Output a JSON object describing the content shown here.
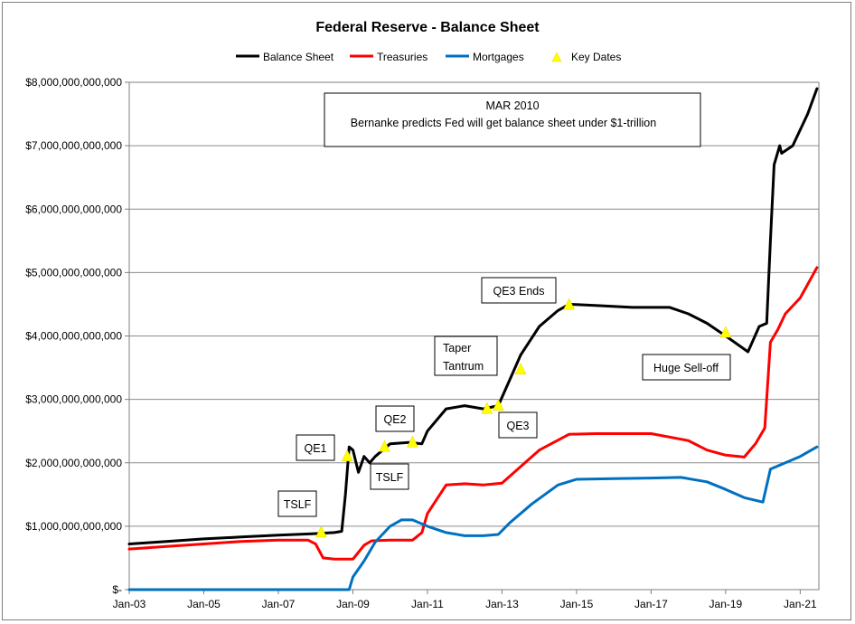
{
  "chart_data": {
    "type": "line",
    "title": "Federal Reserve - Balance Sheet",
    "xlabel": "",
    "ylabel": "",
    "x_tick_labels": [
      "Jan-03",
      "Jan-05",
      "Jan-07",
      "Jan-09",
      "Jan-11",
      "Jan-13",
      "Jan-15",
      "Jan-17",
      "Jan-19",
      "Jan-21"
    ],
    "y_tick_labels": [
      "$-",
      "$1,000,000,000,000",
      "$2,000,000,000,000",
      "$3,000,000,000,000",
      "$4,000,000,000,000",
      "$5,000,000,000,000",
      "$6,000,000,000,000",
      "$7,000,000,000,000",
      "$8,000,000,000,000"
    ],
    "xlim": [
      2003.0,
      2021.5
    ],
    "ylim": [
      0,
      8000000000000
    ],
    "grid": "horizontal",
    "legend_position": "top",
    "legend": [
      "Balance Sheet",
      "Treasuries",
      "Mortgages",
      "Key Dates"
    ],
    "series": [
      {
        "name": "Balance Sheet",
        "color": "#000000",
        "points": [
          [
            2003.0,
            720000000000
          ],
          [
            2004.0,
            760000000000
          ],
          [
            2005.0,
            800000000000
          ],
          [
            2006.0,
            830000000000
          ],
          [
            2007.0,
            860000000000
          ],
          [
            2007.9,
            880000000000
          ],
          [
            2008.5,
            900000000000
          ],
          [
            2008.7,
            920000000000
          ],
          [
            2008.8,
            1500000000000
          ],
          [
            2008.9,
            2250000000000
          ],
          [
            2009.0,
            2200000000000
          ],
          [
            2009.15,
            1850000000000
          ],
          [
            2009.3,
            2100000000000
          ],
          [
            2009.45,
            2000000000000
          ],
          [
            2009.6,
            2100000000000
          ],
          [
            2010.0,
            2300000000000
          ],
          [
            2010.5,
            2320000000000
          ],
          [
            2010.85,
            2300000000000
          ],
          [
            2011.0,
            2500000000000
          ],
          [
            2011.5,
            2850000000000
          ],
          [
            2012.0,
            2900000000000
          ],
          [
            2012.5,
            2850000000000
          ],
          [
            2012.9,
            2900000000000
          ],
          [
            2013.2,
            3300000000000
          ],
          [
            2013.5,
            3700000000000
          ],
          [
            2014.0,
            4150000000000
          ],
          [
            2014.5,
            4400000000000
          ],
          [
            2014.8,
            4500000000000
          ],
          [
            2015.5,
            4480000000000
          ],
          [
            2016.5,
            4450000000000
          ],
          [
            2017.5,
            4450000000000
          ],
          [
            2018.0,
            4350000000000
          ],
          [
            2018.5,
            4200000000000
          ],
          [
            2019.0,
            4000000000000
          ],
          [
            2019.6,
            3750000000000
          ],
          [
            2019.9,
            4150000000000
          ],
          [
            2020.1,
            4200000000000
          ],
          [
            2020.2,
            5500000000000
          ],
          [
            2020.3,
            6700000000000
          ],
          [
            2020.45,
            7000000000000
          ],
          [
            2020.5,
            6880000000000
          ],
          [
            2020.8,
            7000000000000
          ],
          [
            2021.2,
            7500000000000
          ],
          [
            2021.45,
            7900000000000
          ]
        ]
      },
      {
        "name": "Treasuries",
        "color": "#ff0000",
        "points": [
          [
            2003.0,
            640000000000
          ],
          [
            2004.0,
            680000000000
          ],
          [
            2005.0,
            720000000000
          ],
          [
            2006.0,
            760000000000
          ],
          [
            2007.0,
            780000000000
          ],
          [
            2007.8,
            780000000000
          ],
          [
            2008.0,
            720000000000
          ],
          [
            2008.2,
            500000000000
          ],
          [
            2008.5,
            480000000000
          ],
          [
            2009.0,
            480000000000
          ],
          [
            2009.3,
            700000000000
          ],
          [
            2009.5,
            770000000000
          ],
          [
            2010.0,
            780000000000
          ],
          [
            2010.6,
            780000000000
          ],
          [
            2010.85,
            900000000000
          ],
          [
            2011.0,
            1200000000000
          ],
          [
            2011.5,
            1650000000000
          ],
          [
            2012.0,
            1670000000000
          ],
          [
            2012.5,
            1650000000000
          ],
          [
            2013.0,
            1680000000000
          ],
          [
            2014.0,
            2200000000000
          ],
          [
            2014.8,
            2450000000000
          ],
          [
            2015.5,
            2460000000000
          ],
          [
            2017.0,
            2460000000000
          ],
          [
            2018.0,
            2350000000000
          ],
          [
            2018.5,
            2200000000000
          ],
          [
            2019.0,
            2120000000000
          ],
          [
            2019.5,
            2090000000000
          ],
          [
            2019.8,
            2300000000000
          ],
          [
            2020.05,
            2550000000000
          ],
          [
            2020.2,
            3900000000000
          ],
          [
            2020.4,
            4100000000000
          ],
          [
            2020.6,
            4350000000000
          ],
          [
            2021.0,
            4600000000000
          ],
          [
            2021.45,
            5080000000000
          ]
        ]
      },
      {
        "name": "Mortgages",
        "color": "#0070c0",
        "points": [
          [
            2003.0,
            0
          ],
          [
            2008.9,
            0
          ],
          [
            2009.0,
            200000000000
          ],
          [
            2009.3,
            450000000000
          ],
          [
            2009.6,
            750000000000
          ],
          [
            2010.0,
            1000000000000
          ],
          [
            2010.3,
            1100000000000
          ],
          [
            2010.6,
            1100000000000
          ],
          [
            2011.0,
            1000000000000
          ],
          [
            2011.5,
            900000000000
          ],
          [
            2012.0,
            850000000000
          ],
          [
            2012.5,
            850000000000
          ],
          [
            2012.9,
            870000000000
          ],
          [
            2013.2,
            1050000000000
          ],
          [
            2013.8,
            1350000000000
          ],
          [
            2014.5,
            1650000000000
          ],
          [
            2015.0,
            1740000000000
          ],
          [
            2016.0,
            1750000000000
          ],
          [
            2017.0,
            1760000000000
          ],
          [
            2017.8,
            1770000000000
          ],
          [
            2018.5,
            1700000000000
          ],
          [
            2019.0,
            1580000000000
          ],
          [
            2019.5,
            1450000000000
          ],
          [
            2020.0,
            1380000000000
          ],
          [
            2020.2,
            1900000000000
          ],
          [
            2020.6,
            2000000000000
          ],
          [
            2021.0,
            2100000000000
          ],
          [
            2021.45,
            2250000000000
          ]
        ]
      }
    ],
    "key_dates": [
      {
        "label": "TSLF",
        "x": 2008.15,
        "y": 900000000000
      },
      {
        "label": "QE1",
        "x": 2008.85,
        "y": 2100000000000
      },
      {
        "label": "TSLF",
        "x": 2009.85,
        "y": 2250000000000
      },
      {
        "label": "QE2",
        "x": 2010.6,
        "y": 2320000000000
      },
      {
        "label": "QE3",
        "x": 2012.6,
        "y": 2850000000000
      },
      {
        "label": "QE3",
        "x": 2012.9,
        "y": 2900000000000
      },
      {
        "label": "Taper Tantrum",
        "x": 2013.5,
        "y": 3470000000000
      },
      {
        "label": "QE3 Ends",
        "x": 2014.8,
        "y": 4490000000000
      },
      {
        "label": "Huge Sell-off",
        "x": 2019.0,
        "y": 4050000000000
      }
    ],
    "annotations": [
      {
        "id": "tslf1",
        "text": "TSLF"
      },
      {
        "id": "qe1",
        "text": "QE1"
      },
      {
        "id": "tslf2",
        "text": "TSLF"
      },
      {
        "id": "qe2",
        "text": "QE2"
      },
      {
        "id": "qe3",
        "text": "QE3"
      },
      {
        "id": "taper",
        "text": "Taper",
        "text2": "Tantrum"
      },
      {
        "id": "qe3ends",
        "text": "QE3  Ends"
      },
      {
        "id": "selloff",
        "text": "Huge Sell-off"
      },
      {
        "id": "mar2010",
        "text": "MAR 2010",
        "text2": "Bernanke predicts Fed will get balance sheet under $1-trillion"
      }
    ]
  }
}
